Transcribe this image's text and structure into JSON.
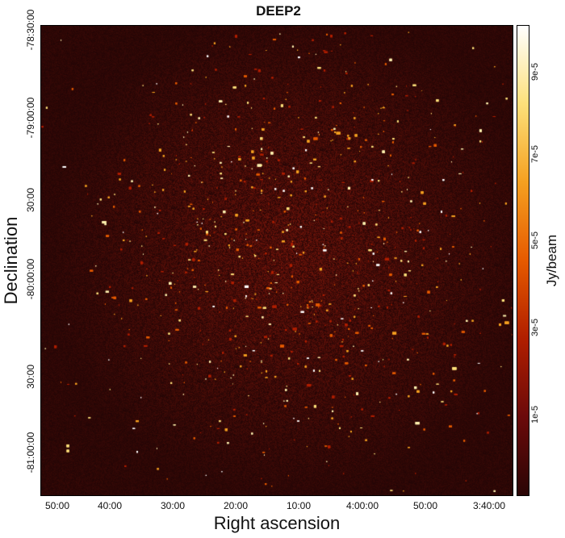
{
  "title": "DEEP2",
  "x_axis": {
    "label": "Right ascension",
    "ticks": [
      "50:00",
      "40:00",
      "30:00",
      "20:00",
      "10:00",
      "4:00:00",
      "50:00",
      "3:40:00"
    ]
  },
  "y_axis": {
    "label": "Declination",
    "ticks": [
      "-78:30:00",
      "-79:00:00",
      "30:00",
      "-80:00:00",
      "30:00",
      "-81:00:00"
    ]
  },
  "colorbar": {
    "label": "Jy/beam",
    "ticks": [
      "9e-5",
      "7e-5",
      "5e-5",
      "3e-5",
      "1e-5"
    ],
    "colormap": [
      "#2a0505",
      "#6b0a0a",
      "#b01e00",
      "#e65a00",
      "#f5a020",
      "#fde07a",
      "#ffffff"
    ]
  }
}
